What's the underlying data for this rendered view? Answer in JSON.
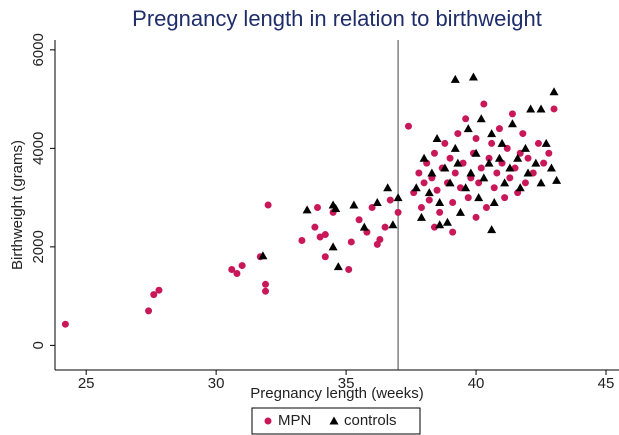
{
  "chart_data": {
    "type": "scatter",
    "title": "Pregnancy length in relation to birthweight",
    "x_label": "Pregnancy length (weeks)",
    "y_label": "Birthweight (grams)",
    "xlim": [
      23.8,
      45.5
    ],
    "xticks": [
      25,
      30,
      35,
      40,
      45
    ],
    "ylim": [
      -500,
      6200
    ],
    "yticks": [
      0,
      2000,
      4000,
      6000
    ],
    "vline": 37,
    "grid": false,
    "legend": "bottom",
    "series": [
      {
        "name": "MPN",
        "color": "#c8185a",
        "marker": "circle",
        "x": [
          24.2,
          27.4,
          27.6,
          27.8,
          30.6,
          30.8,
          31,
          31.7,
          31.9,
          31.9,
          32,
          33.3,
          33.8,
          33.9,
          34,
          34.2,
          34.2,
          34.5,
          35.1,
          35.2,
          35.5,
          35.8,
          36,
          36.2,
          36.3,
          36.5,
          36.7,
          37,
          37.4,
          37.6,
          37.8,
          37.9,
          38,
          38.1,
          38.2,
          38.3,
          38.4,
          38.5,
          38.6,
          38.7,
          38.8,
          38.9,
          39,
          39.1,
          39.2,
          39.3,
          39.4,
          39.5,
          39.6,
          39.7,
          39.8,
          39.9,
          40,
          40.1,
          40.2,
          40.3,
          40.4,
          40.5,
          40.6,
          40.7,
          40.8,
          40.9,
          41,
          41.1,
          41.2,
          41.3,
          41.4,
          41.5,
          41.6,
          41.7,
          41.8,
          41.9,
          42,
          42.2,
          42.4,
          42.6,
          42.8,
          43,
          38.4,
          39.1,
          40
        ],
        "values": [
          430,
          700,
          1030,
          1120,
          1540,
          1460,
          1620,
          1800,
          1240,
          1100,
          2850,
          2130,
          2400,
          2800,
          2200,
          1800,
          2250,
          2700,
          1540,
          2100,
          2550,
          2300,
          2800,
          2050,
          2150,
          2400,
          2950,
          2700,
          4450,
          3100,
          3500,
          2800,
          3300,
          3700,
          2950,
          3400,
          3900,
          3150,
          2700,
          3600,
          4100,
          3300,
          3800,
          2900,
          3500,
          4300,
          3200,
          3700,
          4600,
          3000,
          3400,
          3900,
          4200,
          3300,
          3600,
          4900,
          2800,
          3800,
          4100,
          3200,
          3500,
          4400,
          3700,
          3000,
          4000,
          3400,
          4700,
          3600,
          3100,
          3900,
          4300,
          3300,
          3800,
          3500,
          4100,
          3700,
          3900,
          4800,
          2400,
          2300,
          2600
        ]
      },
      {
        "name": "controls",
        "color": "#000000",
        "marker": "triangle",
        "x": [
          31.8,
          33.5,
          34.5,
          34.6,
          34.7,
          34.5,
          35.3,
          35.7,
          36.2,
          36.6,
          36.8,
          37,
          37.7,
          37.9,
          38,
          38.2,
          38.3,
          38.5,
          38.6,
          38.8,
          38.9,
          39,
          39.2,
          39.3,
          39.4,
          39.6,
          39.7,
          39.8,
          40,
          40.1,
          40.2,
          40.3,
          40.5,
          40.6,
          40.7,
          40.9,
          41,
          41.1,
          41.3,
          41.4,
          41.6,
          41.7,
          41.9,
          42,
          42.1,
          42.3,
          42.5,
          42.7,
          42.9,
          39.2,
          39.9,
          43,
          42.5,
          43.1,
          40.6,
          38.6
        ],
        "values": [
          1820,
          2750,
          2850,
          2780,
          1600,
          2000,
          2850,
          2400,
          2900,
          3200,
          2450,
          3000,
          3200,
          2600,
          3800,
          3100,
          3500,
          4200,
          2900,
          3600,
          2500,
          3300,
          4000,
          3700,
          2700,
          3200,
          4400,
          3500,
          3900,
          3000,
          4600,
          3400,
          3700,
          4300,
          2900,
          3800,
          4100,
          3300,
          3600,
          4500,
          3800,
          3200,
          4000,
          3500,
          4800,
          3700,
          3300,
          4100,
          3600,
          5400,
          5450,
          5150,
          4800,
          3350,
          2350,
          2450
        ]
      }
    ]
  }
}
